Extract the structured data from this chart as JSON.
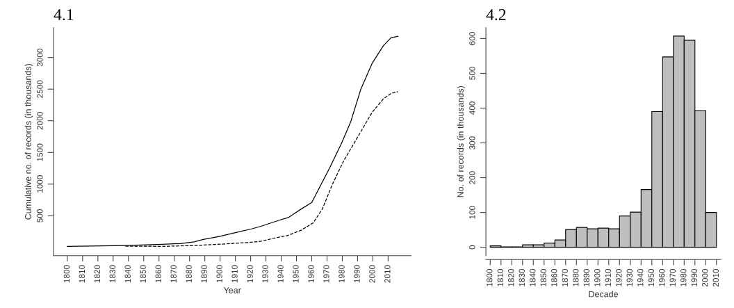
{
  "chart_data": [
    {
      "type": "line",
      "title": "4.1",
      "xlabel": "Year",
      "ylabel": "Cumulative no. of records (in thousands)",
      "xlim": [
        1791,
        2025
      ],
      "xticks": [
        1800,
        1810,
        1820,
        1830,
        1840,
        1850,
        1860,
        1870,
        1880,
        1890,
        1900,
        1910,
        1920,
        1930,
        1940,
        1950,
        1960,
        1970,
        1980,
        1990,
        2000,
        2010
      ],
      "ylim": [
        -130,
        3470
      ],
      "yticks": [
        500,
        1000,
        1500,
        2000,
        2500,
        3000
      ],
      "grid": false,
      "legend": false,
      "marker": "none",
      "series": [
        {
          "color": "#000000",
          "line_style": "solid",
          "x": [
            1800,
            1838,
            1862,
            1874,
            1883,
            1889,
            1900,
            1909,
            1921,
            1927,
            1938,
            1945,
            1948,
            1954,
            1960,
            1967,
            1972,
            1979.5,
            1985.5,
            1992,
            1999.5,
            2007,
            2012,
            2016.4
          ],
          "values": [
            17,
            30,
            48,
            61,
            88,
            125,
            176,
            227,
            295,
            336,
            424,
            475,
            525,
            620,
            710,
            1036,
            1270,
            1646,
            1982,
            2490,
            2907,
            3190,
            3313,
            3333
          ]
        },
        {
          "color": "#000000",
          "line_style": "dashed",
          "x": [
            1838,
            1862,
            1883,
            1900,
            1919,
            1927,
            1938,
            1944,
            1953,
            1961,
            1967,
            1973.5,
            1981,
            1990,
            1999.5,
            2007,
            2012,
            2016.4
          ],
          "values": [
            20,
            17,
            30,
            51,
            78,
            98,
            160,
            186,
            271,
            389,
            610,
            996,
            1372,
            1740,
            2134,
            2348,
            2434,
            2459
          ]
        }
      ]
    },
    {
      "type": "histogram",
      "title": "4.2",
      "xlabel": "Decade",
      "ylabel": "No. of records (in thousands)",
      "color": "#bebebe",
      "bins": [
        1800,
        1810,
        1820,
        1830,
        1840,
        1850,
        1860,
        1870,
        1880,
        1890,
        1900,
        1910,
        1920,
        1930,
        1940,
        1950,
        1960,
        1970,
        1980,
        1990,
        2000,
        2010
      ],
      "values": [
        4,
        1,
        1,
        7,
        7,
        12,
        21,
        51,
        57,
        53,
        55,
        53,
        90,
        101,
        166,
        390,
        547,
        607,
        595,
        393,
        100
      ],
      "xlim": [
        1796,
        2014
      ],
      "xticks": [
        1800,
        1810,
        1820,
        1830,
        1840,
        1850,
        1860,
        1870,
        1880,
        1890,
        1900,
        1910,
        1920,
        1930,
        1940,
        1950,
        1960,
        1970,
        1980,
        1990,
        2000,
        2010
      ],
      "ylim": [
        -24,
        631
      ],
      "yticks": [
        0,
        100,
        200,
        300,
        400,
        500,
        600
      ],
      "grid": false,
      "legend": false
    }
  ]
}
